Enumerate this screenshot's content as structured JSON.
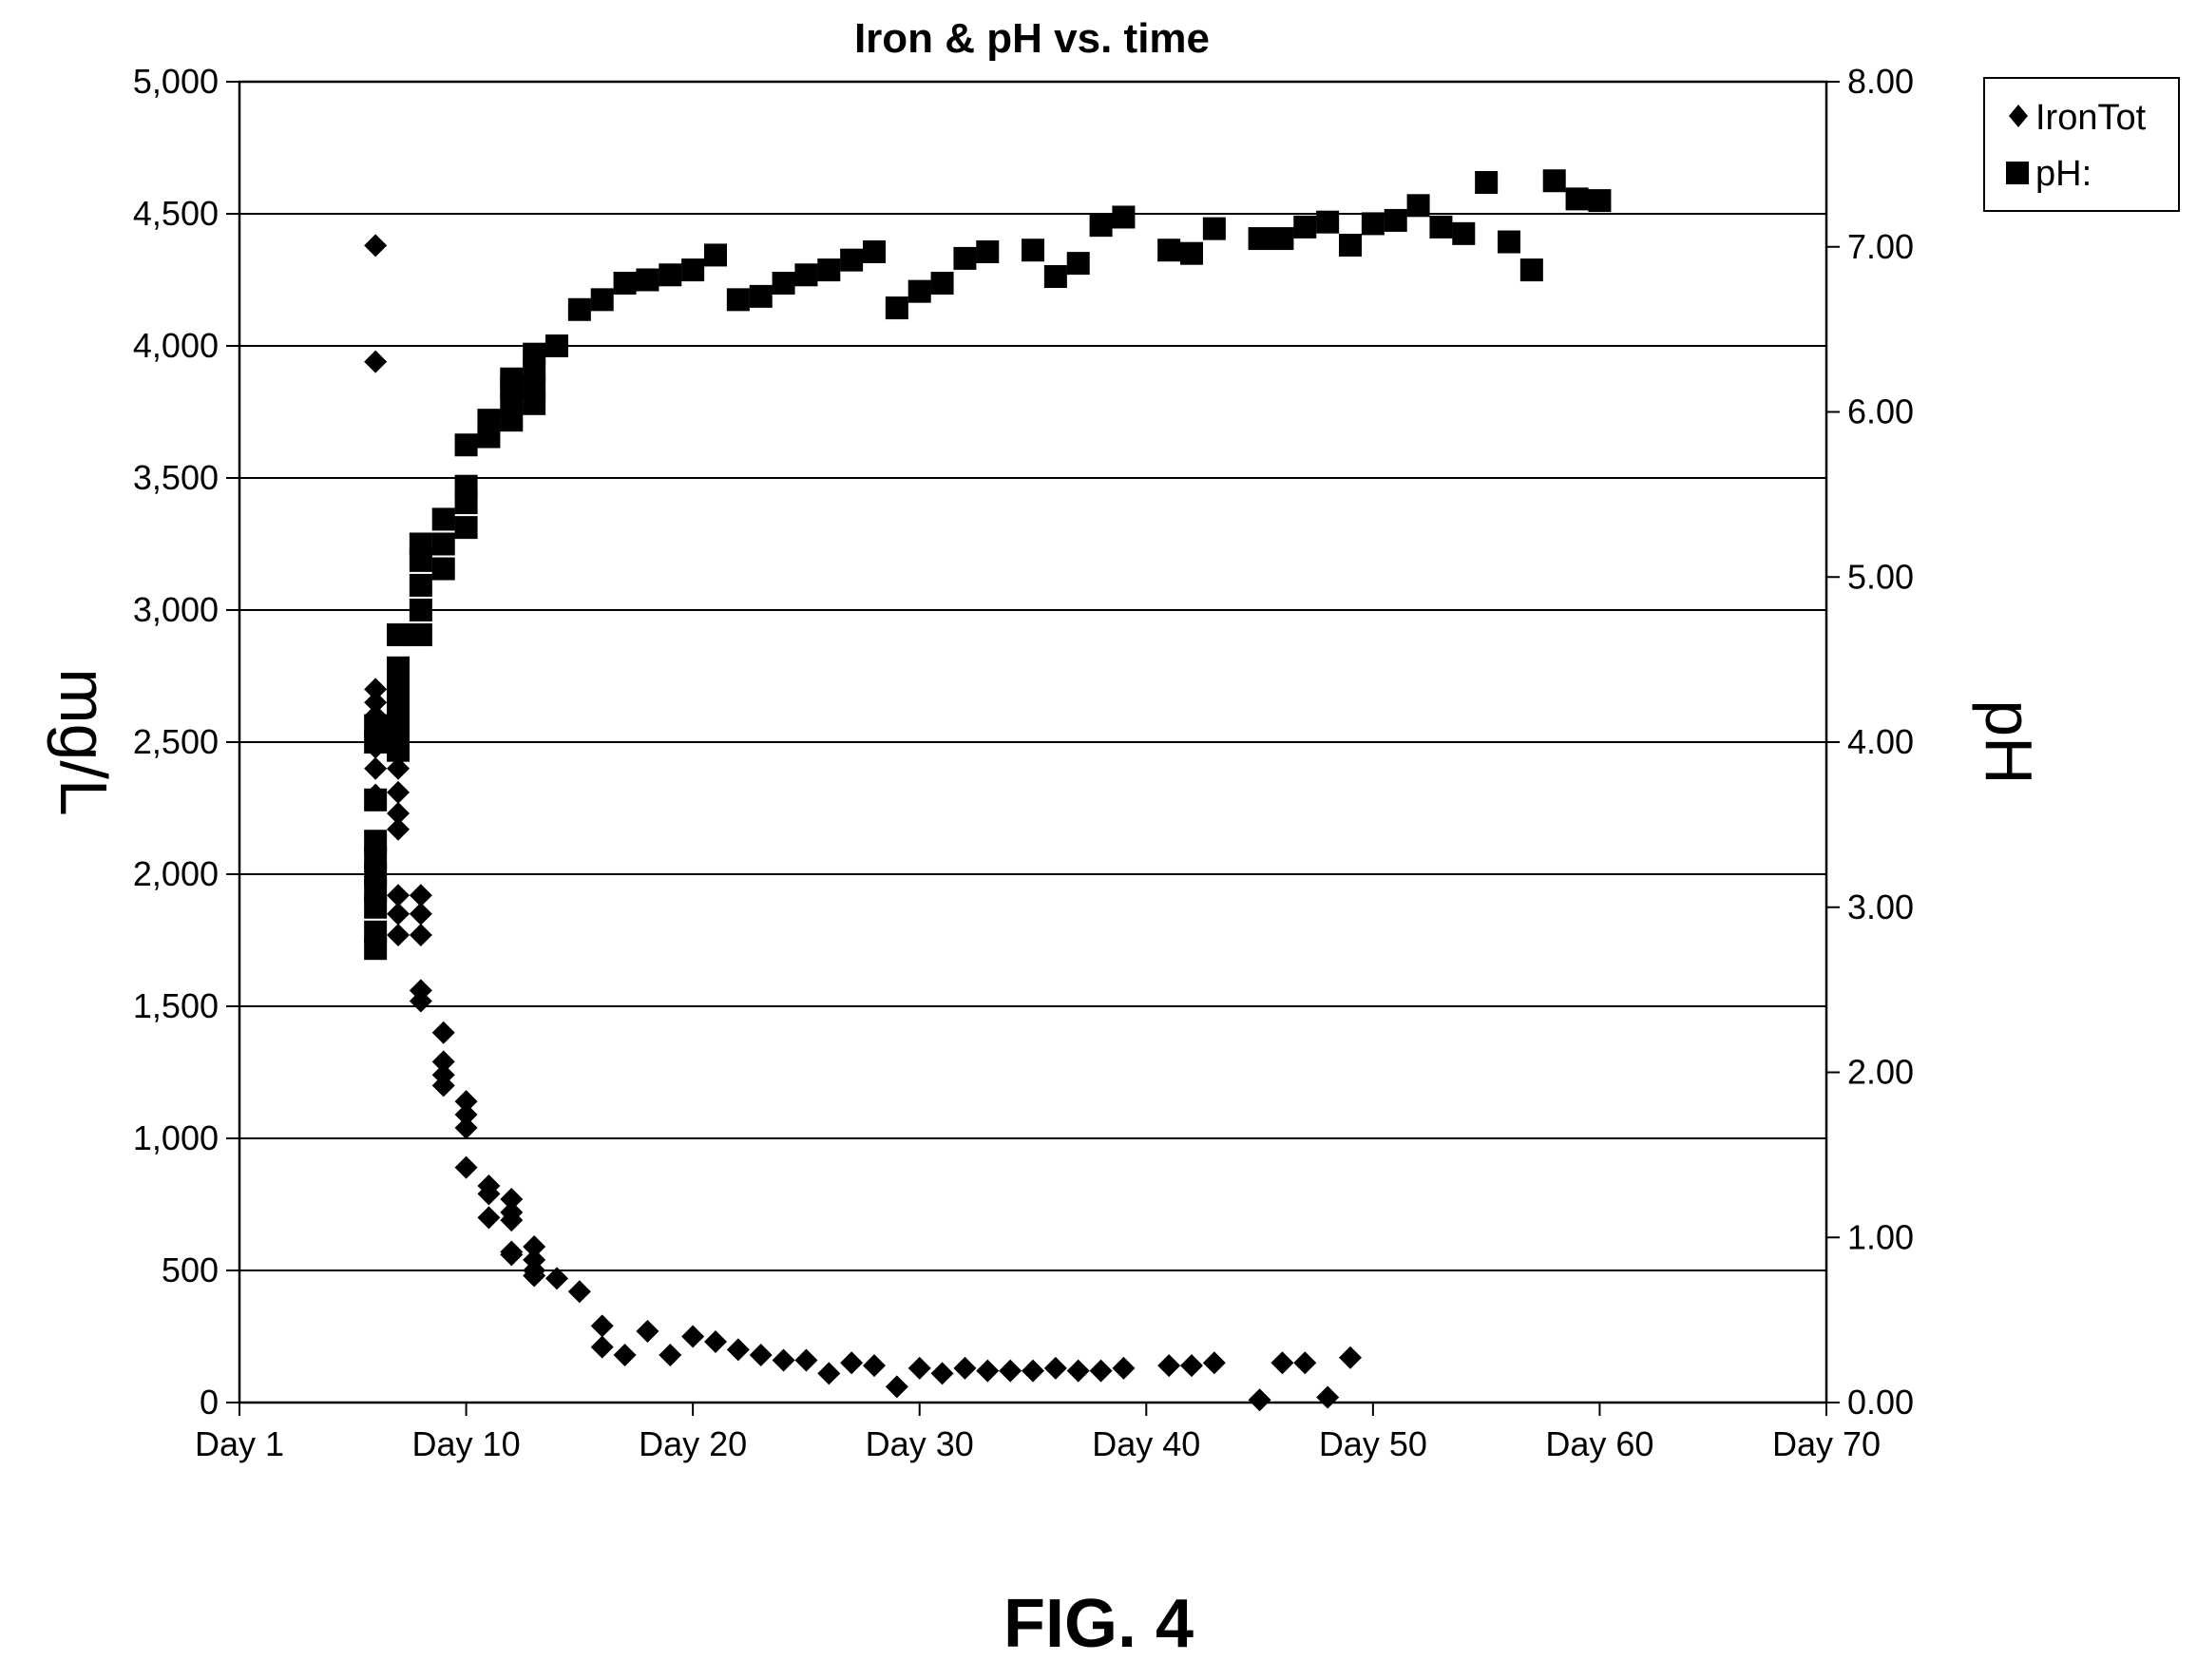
{
  "caption": "FIG. 4",
  "chart_data": {
    "type": "scatter",
    "title": "Iron & pH vs. time",
    "ylabel": "mg/L",
    "y2label": "pH",
    "x_ticks": [
      "Day 1",
      "Day 10",
      "Day 20",
      "Day 30",
      "Day 40",
      "Day 50",
      "Day 60",
      "Day 70"
    ],
    "x_tick_values": [
      0,
      10,
      20,
      30,
      40,
      50,
      60,
      70
    ],
    "xlim": [
      0,
      70
    ],
    "ylim": [
      0,
      5000
    ],
    "y_ticks": [
      "0",
      "500",
      "1,000",
      "1,500",
      "2,000",
      "2,500",
      "3,000",
      "3,500",
      "4,000",
      "4,500",
      "5,000"
    ],
    "y2lim": [
      0,
      8
    ],
    "y2_ticks": [
      "0.00",
      "1.00",
      "2.00",
      "3.00",
      "4.00",
      "5.00",
      "6.00",
      "7.00",
      "8.00"
    ],
    "grid": "horizontal",
    "legend_position": "right-top",
    "series": [
      {
        "name": "IronTot",
        "marker": "diamond",
        "axis": "left",
        "points": [
          [
            6,
            4380
          ],
          [
            6,
            3940
          ],
          [
            6,
            2700
          ],
          [
            6,
            2650
          ],
          [
            6,
            2600
          ],
          [
            6,
            2550
          ],
          [
            6,
            2480
          ],
          [
            6,
            2400
          ],
          [
            6,
            2300
          ],
          [
            7,
            2600
          ],
          [
            7,
            2480
          ],
          [
            7,
            2400
          ],
          [
            7,
            2310
          ],
          [
            7,
            2230
          ],
          [
            7,
            2170
          ],
          [
            7,
            1920
          ],
          [
            7,
            1850
          ],
          [
            7,
            1770
          ],
          [
            8,
            1920
          ],
          [
            8,
            1850
          ],
          [
            8,
            1770
          ],
          [
            8,
            1560
          ],
          [
            8,
            1520
          ],
          [
            9,
            1400
          ],
          [
            9,
            1290
          ],
          [
            9,
            1240
          ],
          [
            9,
            1200
          ],
          [
            10,
            1140
          ],
          [
            10,
            1090
          ],
          [
            10,
            1040
          ],
          [
            10,
            890
          ],
          [
            11,
            820
          ],
          [
            11,
            790
          ],
          [
            11,
            700
          ],
          [
            12,
            770
          ],
          [
            12,
            720
          ],
          [
            12,
            690
          ],
          [
            12,
            570
          ],
          [
            12,
            560
          ],
          [
            13,
            590
          ],
          [
            13,
            540
          ],
          [
            13,
            500
          ],
          [
            13,
            480
          ],
          [
            14,
            470
          ],
          [
            15,
            420
          ],
          [
            16,
            290
          ],
          [
            16,
            210
          ],
          [
            17,
            180
          ],
          [
            18,
            270
          ],
          [
            19,
            180
          ],
          [
            20,
            250
          ],
          [
            21,
            230
          ],
          [
            22,
            200
          ],
          [
            23,
            180
          ],
          [
            24,
            160
          ],
          [
            25,
            160
          ],
          [
            26,
            110
          ],
          [
            27,
            150
          ],
          [
            28,
            140
          ],
          [
            29,
            60
          ],
          [
            30,
            130
          ],
          [
            31,
            110
          ],
          [
            32,
            130
          ],
          [
            33,
            120
          ],
          [
            34,
            120
          ],
          [
            35,
            120
          ],
          [
            36,
            130
          ],
          [
            37,
            120
          ],
          [
            38,
            120
          ],
          [
            39,
            130
          ],
          [
            41,
            140
          ],
          [
            42,
            140
          ],
          [
            43,
            150
          ],
          [
            45,
            10
          ],
          [
            46,
            150
          ],
          [
            47,
            150
          ],
          [
            48,
            20
          ],
          [
            49,
            170
          ]
        ]
      },
      {
        "name": "pH:",
        "marker": "square",
        "axis": "right",
        "points": [
          [
            6,
            2.75
          ],
          [
            6,
            2.85
          ],
          [
            6,
            3.0
          ],
          [
            6,
            3.1
          ],
          [
            6,
            3.2
          ],
          [
            6,
            3.3
          ],
          [
            6,
            3.4
          ],
          [
            6,
            3.65
          ],
          [
            6,
            4.0
          ],
          [
            6,
            4.1
          ],
          [
            7,
            3.95
          ],
          [
            7,
            4.05
          ],
          [
            7,
            4.15
          ],
          [
            7,
            4.25
          ],
          [
            7,
            4.35
          ],
          [
            7,
            4.45
          ],
          [
            7,
            4.65
          ],
          [
            8,
            4.65
          ],
          [
            8,
            4.8
          ],
          [
            8,
            4.95
          ],
          [
            8,
            5.1
          ],
          [
            8,
            5.2
          ],
          [
            9,
            5.05
          ],
          [
            9,
            5.2
          ],
          [
            9,
            5.35
          ],
          [
            10,
            5.3
          ],
          [
            10,
            5.45
          ],
          [
            10,
            5.55
          ],
          [
            10,
            5.8
          ],
          [
            11,
            5.85
          ],
          [
            11,
            5.95
          ],
          [
            12,
            5.95
          ],
          [
            12,
            6.05
          ],
          [
            12,
            6.15
          ],
          [
            12,
            6.2
          ],
          [
            13,
            6.05
          ],
          [
            13,
            6.15
          ],
          [
            13,
            6.25
          ],
          [
            13,
            6.35
          ],
          [
            14,
            6.4
          ],
          [
            15,
            6.62
          ],
          [
            16,
            6.68
          ],
          [
            17,
            6.78
          ],
          [
            18,
            6.8
          ],
          [
            19,
            6.83
          ],
          [
            20,
            6.86
          ],
          [
            21,
            6.95
          ],
          [
            22,
            6.68
          ],
          [
            23,
            6.7
          ],
          [
            24,
            6.78
          ],
          [
            25,
            6.83
          ],
          [
            26,
            6.86
          ],
          [
            27,
            6.92
          ],
          [
            28,
            6.97
          ],
          [
            29,
            6.63
          ],
          [
            30,
            6.73
          ],
          [
            31,
            6.78
          ],
          [
            32,
            6.93
          ],
          [
            33,
            6.97
          ],
          [
            35,
            6.98
          ],
          [
            36,
            6.82
          ],
          [
            37,
            6.9
          ],
          [
            38,
            7.13
          ],
          [
            39,
            7.18
          ],
          [
            41,
            6.98
          ],
          [
            42,
            6.96
          ],
          [
            43,
            7.11
          ],
          [
            45,
            7.05
          ],
          [
            46,
            7.05
          ],
          [
            47,
            7.12
          ],
          [
            48,
            7.15
          ],
          [
            49,
            7.01
          ],
          [
            50,
            7.14
          ],
          [
            51,
            7.16
          ],
          [
            52,
            7.25
          ],
          [
            53,
            7.12
          ],
          [
            54,
            7.08
          ],
          [
            55,
            7.39
          ],
          [
            56,
            7.03
          ],
          [
            57,
            6.86
          ],
          [
            58,
            7.4
          ],
          [
            59,
            7.29
          ],
          [
            60,
            7.28
          ]
        ]
      }
    ]
  }
}
